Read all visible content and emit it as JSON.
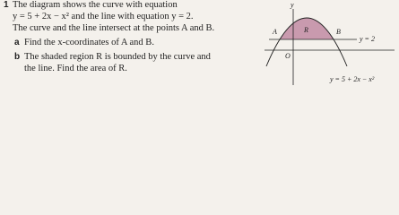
{
  "question": {
    "number": "1",
    "intro": [
      "The diagram shows the curve with equation",
      "y = 5 + 2x − x² and the line with equation y = 2.",
      "The curve and the line intersect at the points A and B."
    ],
    "parts": [
      {
        "label": "a",
        "lines": [
          "Find the x-coordinates of A and B."
        ]
      },
      {
        "label": "b",
        "lines": [
          "The shaded region R is bounded by the curve and",
          "the line. Find the area of R."
        ]
      }
    ]
  },
  "diagram": {
    "y_axis": "y",
    "point_a": "A",
    "region": "R",
    "point_b": "B",
    "line_label": "y = 2",
    "origin": "O",
    "curve_label": "y = 5 + 2x − x²"
  }
}
